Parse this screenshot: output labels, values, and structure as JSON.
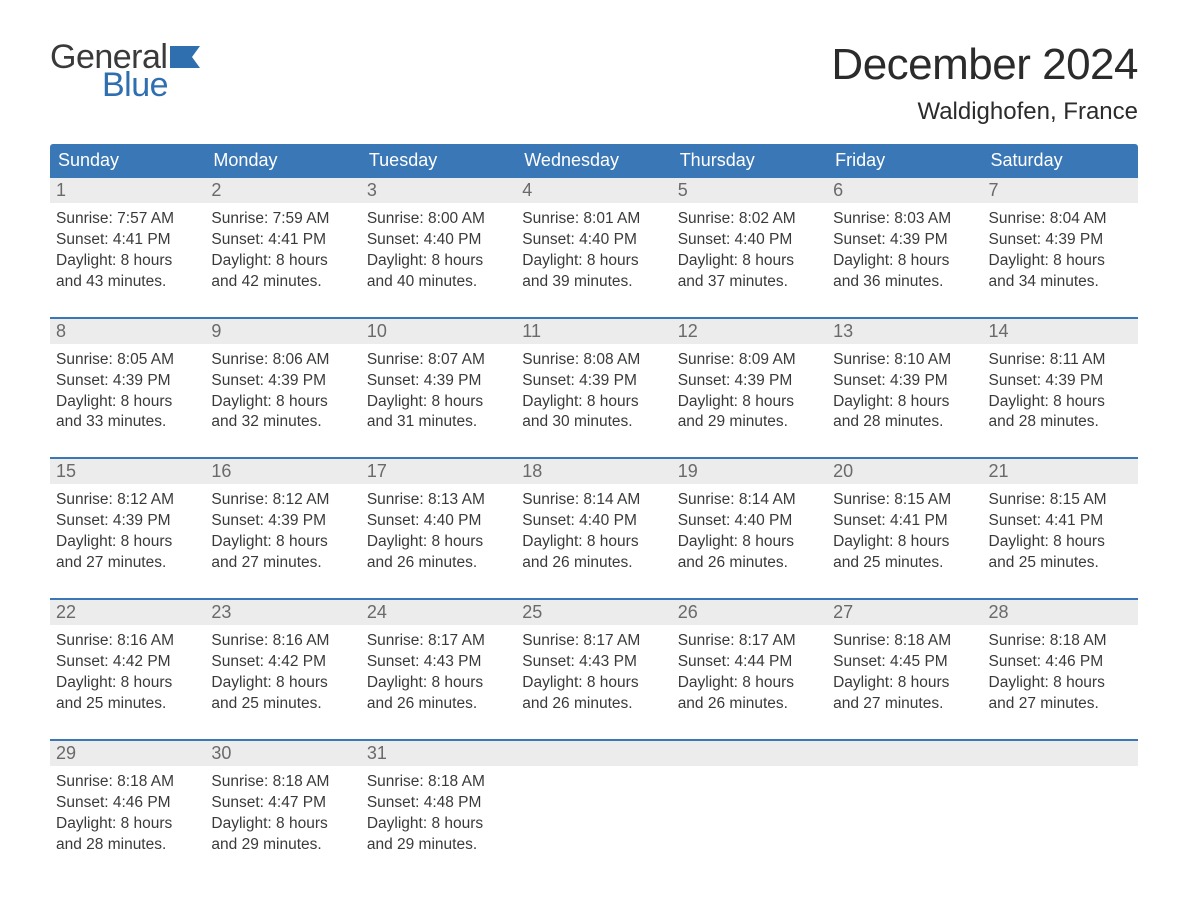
{
  "brand": {
    "word1": "General",
    "word2": "Blue",
    "flag_color": "#2f6fb0",
    "text_color_dark": "#3a3a3a"
  },
  "title": "December 2024",
  "location": "Waldighofen, France",
  "colors": {
    "header_bg": "#3a77b6",
    "header_text": "#ffffff",
    "daynum_bg": "#ececec",
    "daynum_text": "#6a6a6a",
    "body_text": "#3a3a3a",
    "week_divider": "#3a77b6",
    "page_bg": "#ffffff"
  },
  "typography": {
    "title_fontsize": 44,
    "location_fontsize": 24,
    "dow_fontsize": 18,
    "daynum_fontsize": 18,
    "body_fontsize": 15.5,
    "logo_fontsize": 34
  },
  "days_of_week": [
    "Sunday",
    "Monday",
    "Tuesday",
    "Wednesday",
    "Thursday",
    "Friday",
    "Saturday"
  ],
  "weeks": [
    [
      {
        "n": "1",
        "sunrise": "Sunrise: 7:57 AM",
        "sunset": "Sunset: 4:41 PM",
        "dl1": "Daylight: 8 hours",
        "dl2": "and 43 minutes."
      },
      {
        "n": "2",
        "sunrise": "Sunrise: 7:59 AM",
        "sunset": "Sunset: 4:41 PM",
        "dl1": "Daylight: 8 hours",
        "dl2": "and 42 minutes."
      },
      {
        "n": "3",
        "sunrise": "Sunrise: 8:00 AM",
        "sunset": "Sunset: 4:40 PM",
        "dl1": "Daylight: 8 hours",
        "dl2": "and 40 minutes."
      },
      {
        "n": "4",
        "sunrise": "Sunrise: 8:01 AM",
        "sunset": "Sunset: 4:40 PM",
        "dl1": "Daylight: 8 hours",
        "dl2": "and 39 minutes."
      },
      {
        "n": "5",
        "sunrise": "Sunrise: 8:02 AM",
        "sunset": "Sunset: 4:40 PM",
        "dl1": "Daylight: 8 hours",
        "dl2": "and 37 minutes."
      },
      {
        "n": "6",
        "sunrise": "Sunrise: 8:03 AM",
        "sunset": "Sunset: 4:39 PM",
        "dl1": "Daylight: 8 hours",
        "dl2": "and 36 minutes."
      },
      {
        "n": "7",
        "sunrise": "Sunrise: 8:04 AM",
        "sunset": "Sunset: 4:39 PM",
        "dl1": "Daylight: 8 hours",
        "dl2": "and 34 minutes."
      }
    ],
    [
      {
        "n": "8",
        "sunrise": "Sunrise: 8:05 AM",
        "sunset": "Sunset: 4:39 PM",
        "dl1": "Daylight: 8 hours",
        "dl2": "and 33 minutes."
      },
      {
        "n": "9",
        "sunrise": "Sunrise: 8:06 AM",
        "sunset": "Sunset: 4:39 PM",
        "dl1": "Daylight: 8 hours",
        "dl2": "and 32 minutes."
      },
      {
        "n": "10",
        "sunrise": "Sunrise: 8:07 AM",
        "sunset": "Sunset: 4:39 PM",
        "dl1": "Daylight: 8 hours",
        "dl2": "and 31 minutes."
      },
      {
        "n": "11",
        "sunrise": "Sunrise: 8:08 AM",
        "sunset": "Sunset: 4:39 PM",
        "dl1": "Daylight: 8 hours",
        "dl2": "and 30 minutes."
      },
      {
        "n": "12",
        "sunrise": "Sunrise: 8:09 AM",
        "sunset": "Sunset: 4:39 PM",
        "dl1": "Daylight: 8 hours",
        "dl2": "and 29 minutes."
      },
      {
        "n": "13",
        "sunrise": "Sunrise: 8:10 AM",
        "sunset": "Sunset: 4:39 PM",
        "dl1": "Daylight: 8 hours",
        "dl2": "and 28 minutes."
      },
      {
        "n": "14",
        "sunrise": "Sunrise: 8:11 AM",
        "sunset": "Sunset: 4:39 PM",
        "dl1": "Daylight: 8 hours",
        "dl2": "and 28 minutes."
      }
    ],
    [
      {
        "n": "15",
        "sunrise": "Sunrise: 8:12 AM",
        "sunset": "Sunset: 4:39 PM",
        "dl1": "Daylight: 8 hours",
        "dl2": "and 27 minutes."
      },
      {
        "n": "16",
        "sunrise": "Sunrise: 8:12 AM",
        "sunset": "Sunset: 4:39 PM",
        "dl1": "Daylight: 8 hours",
        "dl2": "and 27 minutes."
      },
      {
        "n": "17",
        "sunrise": "Sunrise: 8:13 AM",
        "sunset": "Sunset: 4:40 PM",
        "dl1": "Daylight: 8 hours",
        "dl2": "and 26 minutes."
      },
      {
        "n": "18",
        "sunrise": "Sunrise: 8:14 AM",
        "sunset": "Sunset: 4:40 PM",
        "dl1": "Daylight: 8 hours",
        "dl2": "and 26 minutes."
      },
      {
        "n": "19",
        "sunrise": "Sunrise: 8:14 AM",
        "sunset": "Sunset: 4:40 PM",
        "dl1": "Daylight: 8 hours",
        "dl2": "and 26 minutes."
      },
      {
        "n": "20",
        "sunrise": "Sunrise: 8:15 AM",
        "sunset": "Sunset: 4:41 PM",
        "dl1": "Daylight: 8 hours",
        "dl2": "and 25 minutes."
      },
      {
        "n": "21",
        "sunrise": "Sunrise: 8:15 AM",
        "sunset": "Sunset: 4:41 PM",
        "dl1": "Daylight: 8 hours",
        "dl2": "and 25 minutes."
      }
    ],
    [
      {
        "n": "22",
        "sunrise": "Sunrise: 8:16 AM",
        "sunset": "Sunset: 4:42 PM",
        "dl1": "Daylight: 8 hours",
        "dl2": "and 25 minutes."
      },
      {
        "n": "23",
        "sunrise": "Sunrise: 8:16 AM",
        "sunset": "Sunset: 4:42 PM",
        "dl1": "Daylight: 8 hours",
        "dl2": "and 25 minutes."
      },
      {
        "n": "24",
        "sunrise": "Sunrise: 8:17 AM",
        "sunset": "Sunset: 4:43 PM",
        "dl1": "Daylight: 8 hours",
        "dl2": "and 26 minutes."
      },
      {
        "n": "25",
        "sunrise": "Sunrise: 8:17 AM",
        "sunset": "Sunset: 4:43 PM",
        "dl1": "Daylight: 8 hours",
        "dl2": "and 26 minutes."
      },
      {
        "n": "26",
        "sunrise": "Sunrise: 8:17 AM",
        "sunset": "Sunset: 4:44 PM",
        "dl1": "Daylight: 8 hours",
        "dl2": "and 26 minutes."
      },
      {
        "n": "27",
        "sunrise": "Sunrise: 8:18 AM",
        "sunset": "Sunset: 4:45 PM",
        "dl1": "Daylight: 8 hours",
        "dl2": "and 27 minutes."
      },
      {
        "n": "28",
        "sunrise": "Sunrise: 8:18 AM",
        "sunset": "Sunset: 4:46 PM",
        "dl1": "Daylight: 8 hours",
        "dl2": "and 27 minutes."
      }
    ],
    [
      {
        "n": "29",
        "sunrise": "Sunrise: 8:18 AM",
        "sunset": "Sunset: 4:46 PM",
        "dl1": "Daylight: 8 hours",
        "dl2": "and 28 minutes."
      },
      {
        "n": "30",
        "sunrise": "Sunrise: 8:18 AM",
        "sunset": "Sunset: 4:47 PM",
        "dl1": "Daylight: 8 hours",
        "dl2": "and 29 minutes."
      },
      {
        "n": "31",
        "sunrise": "Sunrise: 8:18 AM",
        "sunset": "Sunset: 4:48 PM",
        "dl1": "Daylight: 8 hours",
        "dl2": "and 29 minutes."
      },
      {
        "empty": true
      },
      {
        "empty": true
      },
      {
        "empty": true
      },
      {
        "empty": true
      }
    ]
  ]
}
